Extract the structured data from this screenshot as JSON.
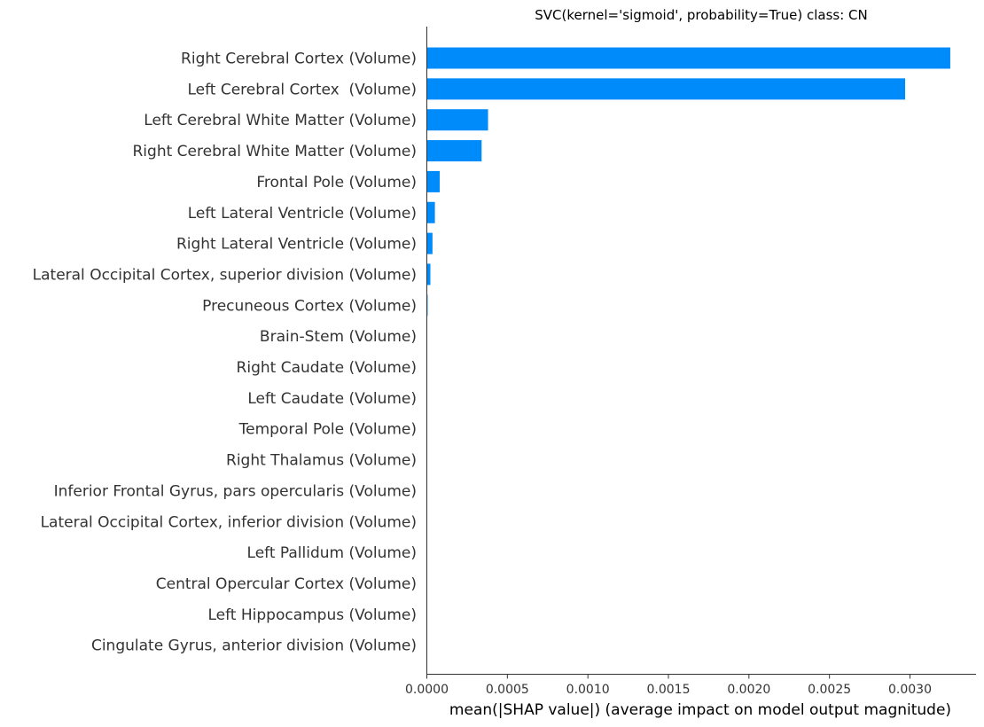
{
  "chart_data": {
    "type": "bar",
    "orientation": "horizontal",
    "title": "SVC(kernel='sigmoid', probability=True) class: CN",
    "xlabel": "mean(|SHAP value|) (average impact on model output magnitude)",
    "ylabel": "",
    "xlim": [
      0,
      0.00341
    ],
    "xticks": [
      0,
      0.0005,
      0.001,
      0.0015,
      0.002,
      0.0025,
      0.003
    ],
    "xtick_labels": [
      "0.0000",
      "0.0005",
      "0.0010",
      "0.0015",
      "0.0020",
      "0.0025",
      "0.0030"
    ],
    "grid": false,
    "bar_color": "#008bfb",
    "categories": [
      "Right Cerebral Cortex (Volume)",
      "Left Cerebral Cortex  (Volume)",
      "Left Cerebral White Matter (Volume)",
      "Right Cerebral White Matter (Volume)",
      "Frontal Pole (Volume)",
      "Left Lateral Ventricle (Volume)",
      "Right Lateral Ventricle (Volume)",
      "Lateral Occipital Cortex, superior division (Volume)",
      "Precuneous Cortex (Volume)",
      "Brain-Stem (Volume)",
      "Right Caudate (Volume)",
      "Left Caudate (Volume)",
      "Temporal Pole (Volume)",
      "Right Thalamus (Volume)",
      "Inferior Frontal Gyrus, pars opercularis (Volume)",
      "Lateral Occipital Cortex, inferior division (Volume)",
      "Left Pallidum (Volume)",
      "Central Opercular Cortex (Volume)",
      "Left Hippocampus (Volume)",
      "Cingulate Gyrus, anterior division (Volume)"
    ],
    "values": [
      0.00325,
      0.00297,
      0.00038,
      0.00034,
      8e-05,
      5e-05,
      3.5e-05,
      2.2e-05,
      5e-06,
      1e-06,
      8e-07,
      7e-07,
      6e-07,
      5e-07,
      4e-07,
      3e-07,
      3e-07,
      2e-07,
      2e-07,
      1e-07
    ]
  }
}
